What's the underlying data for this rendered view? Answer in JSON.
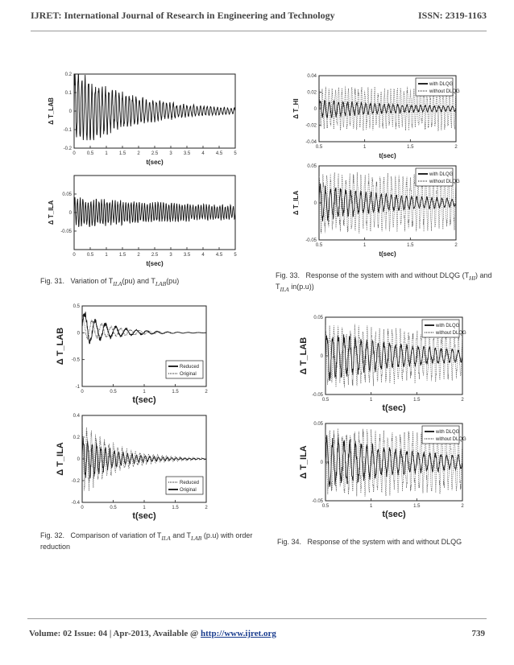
{
  "header": {
    "journal": "IJRET: International Journal of Research in Engineering and Technology",
    "issn": "ISSN: 2319-1163"
  },
  "footer": {
    "volume_text": "Volume: 02 Issue: 04 | Apr-2013, Available @ ",
    "url": "http://www.ijret.org",
    "page": "739"
  },
  "captions": {
    "fig31": {
      "num": "Fig. 31.",
      "text": "Variation of T",
      "sub1": "ILA",
      "mid": "(pu) and T",
      "sub2": "LAB",
      "end": "(pu)"
    },
    "fig32": {
      "num": "Fig. 32.",
      "text": "Comparison of variation of T",
      "sub1": "ILA",
      "mid": "and T",
      "sub2": "LAB",
      "end": "(p.u) with order reduction"
    },
    "fig33": {
      "num": "Fig. 33.",
      "text": "Response of the system with and without DLQG (T",
      "sub1": "HI",
      "mid": "and T",
      "sub2": "ILA",
      "end": "in(p.u))"
    },
    "fig34": {
      "num": "Fig. 34.",
      "text": "Response of the system with and without DLQG"
    }
  },
  "chart_data": [
    {
      "id": "fig31a",
      "type": "line",
      "ylabel": "Δ T_LAB",
      "xlabel": "t(sec)",
      "xlim": [
        0,
        5
      ],
      "ylim": [
        -0.2,
        0.2
      ],
      "xticks": [
        "0",
        "0.5",
        "1",
        "1.5",
        "2",
        "2.5",
        "3",
        "3.5",
        "4",
        "4.5",
        "5"
      ],
      "yticks": [
        "0.2",
        "0.1",
        "0",
        "-0.1",
        "-0.2"
      ],
      "series": [
        {
          "amp0": 0.18,
          "decay": 0.5,
          "freq": 9.5,
          "offset": 0.03,
          "style": "solid"
        }
      ]
    },
    {
      "id": "fig31b",
      "type": "line",
      "ylabel": "Δ T_ILA",
      "xlabel": "t(sec)",
      "xlim": [
        0,
        5
      ],
      "ylim": [
        -0.1,
        0.1
      ],
      "xticks": [
        "0",
        "0.5",
        "1",
        "1.5",
        "2",
        "2.5",
        "3",
        "3.5",
        "4",
        "4.5",
        "5"
      ],
      "yticks": [
        "0.05",
        "0",
        "-0.05"
      ],
      "series": [
        {
          "amp0": 0.035,
          "decay": 0.15,
          "freq": 12,
          "offset": 0.0,
          "style": "solid"
        }
      ]
    },
    {
      "id": "fig32a",
      "type": "line",
      "ylabel": "Δ T_LAB",
      "xlabel": "t(sec)",
      "xlim": [
        0,
        2
      ],
      "ylim": [
        -1,
        0.5
      ],
      "xticks": [
        "0",
        "0.5",
        "1",
        "1.5",
        "2"
      ],
      "yticks": [
        "0.5",
        "0",
        "-0.5",
        "-1"
      ],
      "legend": [
        "Reduced",
        "Original"
      ],
      "series": [
        {
          "name": "Reduced",
          "amp0": 0.3,
          "decay": 2.2,
          "freq": 6,
          "offset": 0.1,
          "style": "solid"
        },
        {
          "name": "Original",
          "amp0": 0.22,
          "decay": 2.0,
          "freq": 6.5,
          "offset": 0.1,
          "style": "dotted"
        }
      ]
    },
    {
      "id": "fig32b",
      "type": "line",
      "ylabel": "Δ T_ILA",
      "xlabel": "t(sec)",
      "xlim": [
        0,
        2
      ],
      "ylim": [
        -0.4,
        0.4
      ],
      "xticks": [
        "0",
        "0.5",
        "1",
        "1.5",
        "2"
      ],
      "yticks": [
        "0.4",
        "0.2",
        "0",
        "-0.2",
        "-0.4"
      ],
      "legend": [
        "Reduced",
        "Original"
      ],
      "series": [
        {
          "name": "Original",
          "amp0": 0.2,
          "decay": 2.0,
          "freq": 14,
          "offset": 0.0,
          "style": "solid"
        },
        {
          "name": "Reduced",
          "amp0": 0.3,
          "decay": 1.8,
          "freq": 14,
          "offset": 0.0,
          "style": "dotted"
        }
      ]
    },
    {
      "id": "fig33a",
      "type": "line",
      "ylabel": "Δ T_HI",
      "xlabel": "t(sec)",
      "xlim": [
        0.5,
        2
      ],
      "ylim": [
        -0.04,
        0.04
      ],
      "xticks": [
        "0.5",
        "1",
        "1.5",
        "2"
      ],
      "yticks": [
        "0.04",
        "0.02",
        "0",
        "-0.02",
        "-0.04"
      ],
      "legend": [
        "with DLQG",
        "without DLQG"
      ],
      "series": [
        {
          "name": "with DLQG",
          "amp0": 0.01,
          "decay": 0.9,
          "freq": 20,
          "offset": 0.0,
          "style": "solid"
        },
        {
          "name": "without DLQG",
          "amp0": 0.022,
          "decay": 0.0,
          "freq": 28,
          "offset": 0.0,
          "style": "dotted"
        }
      ]
    },
    {
      "id": "fig33b",
      "type": "line",
      "ylabel": "Δ T_ILA",
      "xlabel": "t(sec)",
      "xlim": [
        0.5,
        2
      ],
      "ylim": [
        -0.05,
        0.05
      ],
      "xticks": [
        "0.5",
        "1",
        "1.5",
        "2"
      ],
      "yticks": [
        "0.05",
        "0",
        "-0.05"
      ],
      "legend": [
        "with DLQG",
        "without DLQG"
      ],
      "series": [
        {
          "name": "with DLQG",
          "amp0": 0.022,
          "decay": 1.0,
          "freq": 18,
          "offset": 0.0,
          "style": "solid"
        },
        {
          "name": "without DLQG",
          "amp0": 0.035,
          "decay": 0.1,
          "freq": 24,
          "offset": 0.0,
          "style": "dotted"
        }
      ]
    },
    {
      "id": "fig34a",
      "type": "line",
      "ylabel": "Δ T_LAB",
      "xlabel": "t(sec)",
      "xlim": [
        0.5,
        2
      ],
      "ylim": [
        -0.05,
        0.05
      ],
      "xticks": [
        "0.5",
        "1",
        "1.5",
        "2"
      ],
      "yticks": [
        "0.05",
        "0",
        "-0.05"
      ],
      "legend": [
        "with DLQG",
        "without DLQG"
      ],
      "series": [
        {
          "name": "with DLQG",
          "amp0": 0.028,
          "decay": 0.9,
          "freq": 16,
          "offset": 0.0,
          "style": "solid"
        },
        {
          "name": "without DLQG",
          "amp0": 0.035,
          "decay": 0.2,
          "freq": 22,
          "offset": 0.0,
          "style": "dotted"
        }
      ]
    },
    {
      "id": "fig34b",
      "type": "line",
      "ylabel": "Δ T_ILA",
      "xlabel": "t(sec)",
      "xlim": [
        0.5,
        2
      ],
      "ylim": [
        -0.05,
        0.05
      ],
      "xticks": [
        "0.5",
        "1",
        "1.5",
        "2"
      ],
      "yticks": [
        "0.05",
        "0",
        "-0.05"
      ],
      "legend": [
        "with DLQG",
        "without DLQG"
      ],
      "series": [
        {
          "name": "with DLQG",
          "amp0": 0.03,
          "decay": 0.9,
          "freq": 16,
          "offset": 0.0,
          "style": "solid"
        },
        {
          "name": "without DLQG",
          "amp0": 0.038,
          "decay": 0.1,
          "freq": 22,
          "offset": 0.0,
          "style": "dotted"
        }
      ]
    }
  ]
}
